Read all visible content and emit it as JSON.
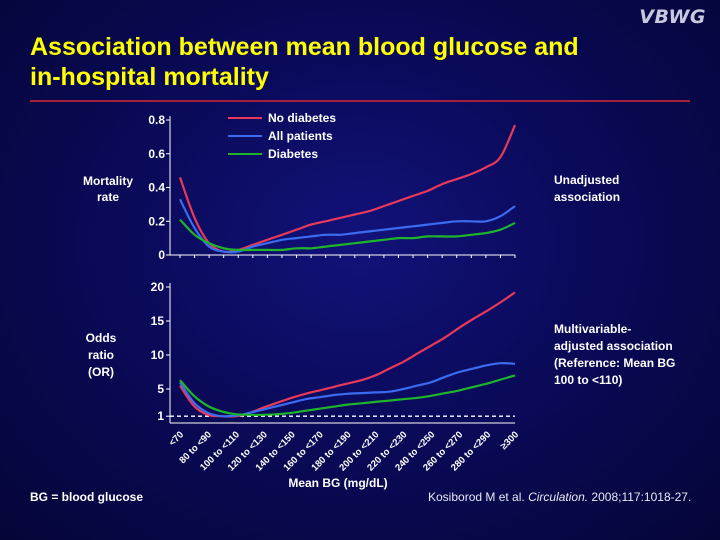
{
  "header": {
    "logo": "VBWG",
    "title_line1": "Association between mean blood glucose and",
    "title_line2": "in-hospital mortality"
  },
  "footer": {
    "abbreviation": "BG = blood glucose",
    "citation_authors": "Kosiborod M et al. ",
    "citation_journal": "Circulation.",
    "citation_details": " 2008;117:1018-27."
  },
  "colors": {
    "title": "#ffff00",
    "rule": "#a5203c",
    "no_diabetes": "#e8395a",
    "all_patients": "#3b6cf0",
    "diabetes": "#1fb52a"
  },
  "chart_data": [
    {
      "type": "line",
      "ylabel": "Mortality rate",
      "annotation": "Unadjusted association",
      "ylim": [
        0,
        0.8
      ],
      "yticks": [
        "0",
        "0.2",
        "0.4",
        "0.6",
        "0.8"
      ],
      "ytick_values": [
        0,
        0.2,
        0.4,
        0.6,
        0.8
      ],
      "x": [
        0,
        1,
        2,
        3,
        4,
        5,
        6,
        7,
        8,
        9,
        10,
        11,
        12,
        13,
        14,
        15,
        16,
        17,
        18,
        19,
        20,
        21,
        22,
        23
      ],
      "legend_position": "top-center",
      "series": [
        {
          "name": "No diabetes",
          "color_key": "no_diabetes",
          "values": [
            0.46,
            0.22,
            0.07,
            0.02,
            0.03,
            0.06,
            0.09,
            0.12,
            0.15,
            0.18,
            0.2,
            0.22,
            0.24,
            0.26,
            0.29,
            0.32,
            0.35,
            0.38,
            0.42,
            0.45,
            0.48,
            0.52,
            0.58,
            0.77
          ]
        },
        {
          "name": "All patients",
          "color_key": "all_patients",
          "values": [
            0.33,
            0.16,
            0.05,
            0.02,
            0.02,
            0.05,
            0.07,
            0.09,
            0.1,
            0.11,
            0.12,
            0.12,
            0.13,
            0.14,
            0.15,
            0.16,
            0.17,
            0.18,
            0.19,
            0.2,
            0.2,
            0.2,
            0.23,
            0.29
          ]
        },
        {
          "name": "Diabetes",
          "color_key": "diabetes",
          "values": [
            0.21,
            0.12,
            0.07,
            0.04,
            0.03,
            0.03,
            0.03,
            0.03,
            0.04,
            0.04,
            0.05,
            0.06,
            0.07,
            0.08,
            0.09,
            0.1,
            0.1,
            0.11,
            0.11,
            0.11,
            0.12,
            0.13,
            0.15,
            0.19
          ]
        }
      ]
    },
    {
      "type": "line",
      "ylabel_lines": [
        "Odds",
        "ratio",
        "(OR)"
      ],
      "xlabel": "Mean BG (mg/dL)",
      "annotation_lines": [
        "Multivariable-",
        "adjusted association",
        "(Reference: Mean BG",
        "100 to <110)"
      ],
      "ylim": [
        0,
        20
      ],
      "yticks": [
        "1",
        "5",
        "10",
        "15",
        "20"
      ],
      "ytick_values": [
        1,
        5,
        10,
        15,
        20
      ],
      "reference_line": 1,
      "categories": [
        "<70",
        "80 to <90",
        "100 to <110",
        "120 to <130",
        "140 to <150",
        "160 to <170",
        "180 to <190",
        "200 to <210",
        "220 to <230",
        "240 to <250",
        "260 to <270",
        "280 to <290",
        "≥300"
      ],
      "category_x": [
        0,
        2,
        4,
        6,
        8,
        10,
        12,
        14,
        16,
        18,
        20,
        22,
        24
      ],
      "x": [
        0,
        1,
        2,
        3,
        4,
        5,
        6,
        7,
        8,
        9,
        10,
        11,
        12,
        13,
        14,
        15,
        16,
        17,
        18,
        19,
        20,
        21,
        22,
        23,
        24
      ],
      "series": [
        {
          "name": "No diabetes",
          "color_key": "no_diabetes",
          "values": [
            5.5,
            2.5,
            1.2,
            1.0,
            1.0,
            1.5,
            2.3,
            3.0,
            3.7,
            4.3,
            4.8,
            5.3,
            5.8,
            6.3,
            7.0,
            8.0,
            9.0,
            10.2,
            11.4,
            12.6,
            14.0,
            15.3,
            16.5,
            17.8,
            19.2
          ]
        },
        {
          "name": "All patients",
          "color_key": "all_patients",
          "values": [
            6.0,
            3.0,
            1.5,
            1.0,
            1.1,
            1.5,
            2.0,
            2.5,
            3.0,
            3.5,
            3.8,
            4.1,
            4.3,
            4.4,
            4.5,
            4.6,
            5.0,
            5.5,
            6.0,
            6.8,
            7.5,
            8.0,
            8.5,
            8.8,
            8.7
          ]
        },
        {
          "name": "Diabetes",
          "color_key": "diabetes",
          "values": [
            6.3,
            4.0,
            2.5,
            1.7,
            1.3,
            1.2,
            1.2,
            1.3,
            1.5,
            1.8,
            2.1,
            2.4,
            2.7,
            2.9,
            3.1,
            3.3,
            3.5,
            3.7,
            4.0,
            4.4,
            4.8,
            5.3,
            5.8,
            6.4,
            7.0
          ]
        }
      ]
    }
  ]
}
